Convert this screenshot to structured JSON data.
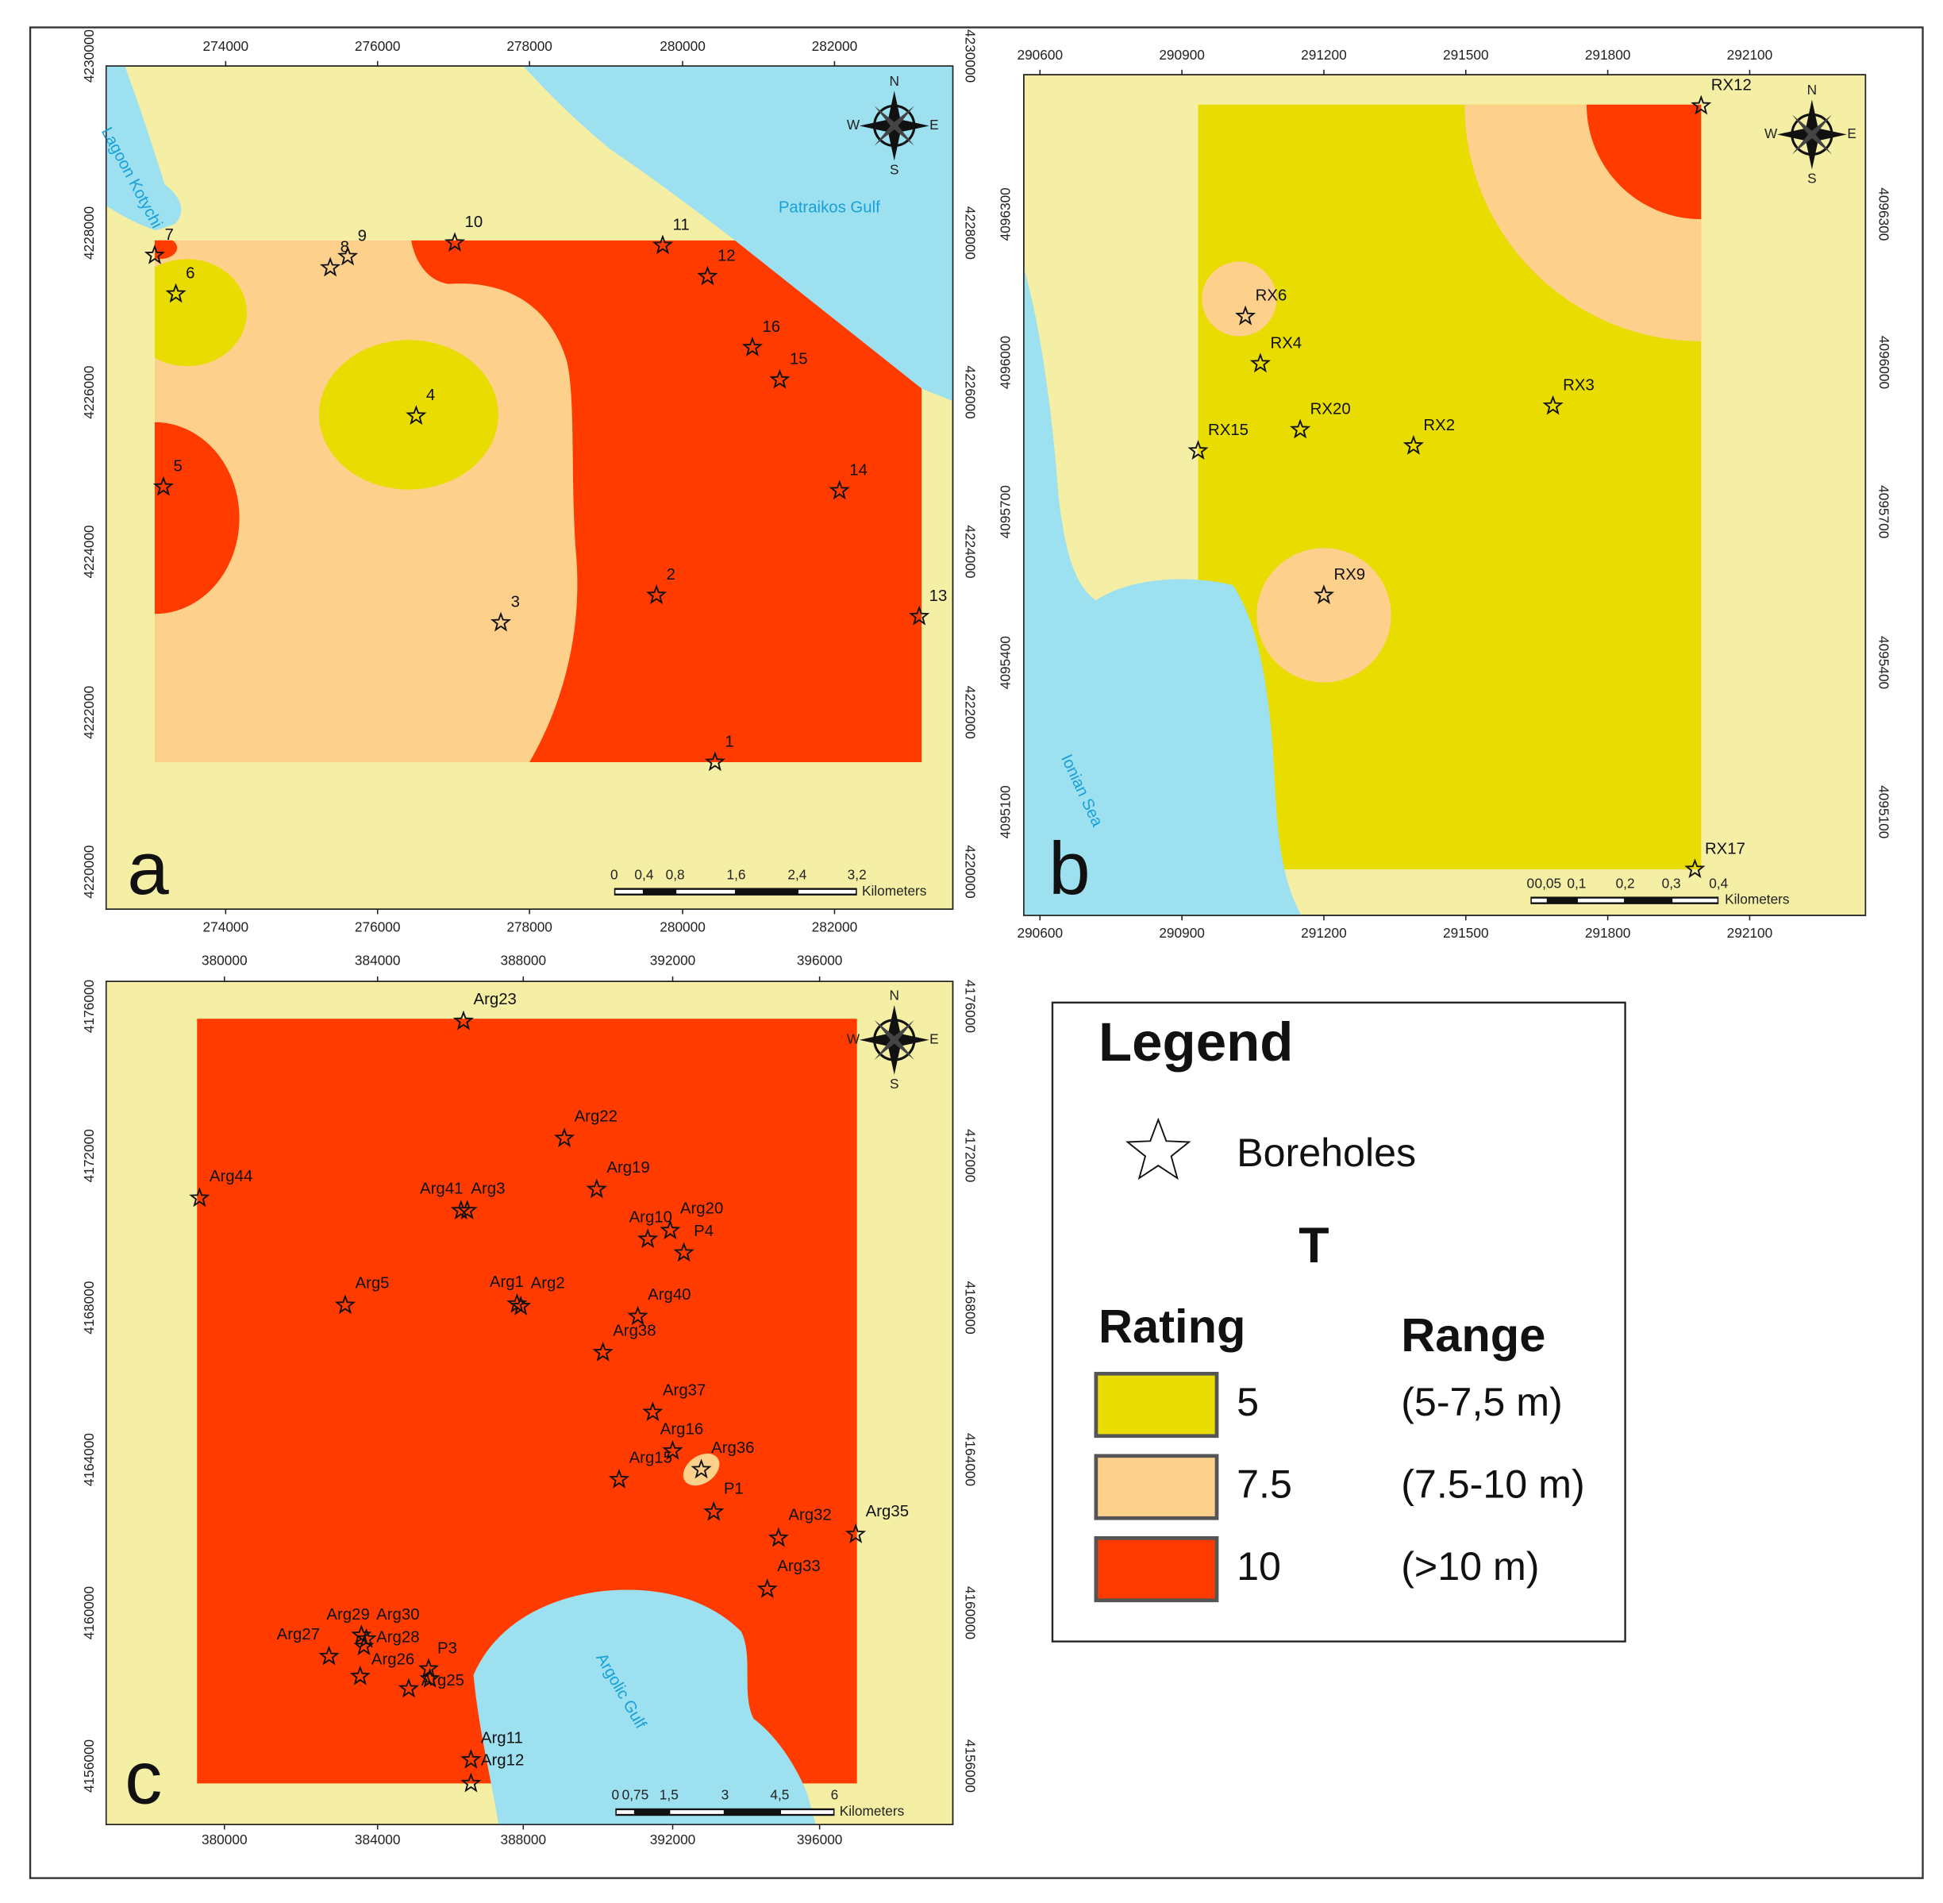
{
  "compass": {
    "n": "N",
    "e": "E",
    "s": "S",
    "w": "W"
  },
  "panels": [
    {
      "letter": "a",
      "x_ticks": [
        "274000",
        "276000",
        "278000",
        "280000",
        "282000"
      ],
      "y_ticks": [
        "4230000",
        "4228000",
        "4226000",
        "4224000",
        "4222000",
        "4220000"
      ],
      "places": [
        "Patraikos Gulf",
        "Lagoon Kotychi"
      ],
      "boreholes": [
        "1",
        "2",
        "3",
        "4",
        "5",
        "6",
        "7",
        "8",
        "9",
        "10",
        "11",
        "12",
        "13",
        "14",
        "15",
        "16"
      ],
      "scale_ticks": [
        "0",
        "0,4",
        "0,8",
        "1,6",
        "2,4",
        "3,2"
      ],
      "scale_unit": "Kilometers"
    },
    {
      "letter": "b",
      "x_ticks": [
        "290600",
        "290900",
        "291200",
        "291500",
        "291800",
        "292100"
      ],
      "y_ticks": [
        "4096300",
        "4096000",
        "4095700",
        "4095400",
        "4095100"
      ],
      "places": [
        "Ionian Sea"
      ],
      "boreholes": [
        "RX12",
        "RX6",
        "RX4",
        "RX20",
        "RX2",
        "RX3",
        "RX15",
        "RX9",
        "RX17"
      ],
      "scale_ticks": [
        "0",
        "0,05",
        "0,1",
        "0,2",
        "0,3",
        "0,4"
      ],
      "scale_unit": "Kilometers"
    },
    {
      "letter": "c",
      "x_ticks": [
        "380000",
        "384000",
        "388000",
        "392000",
        "396000"
      ],
      "y_ticks": [
        "4176000",
        "4172000",
        "4168000",
        "4164000",
        "4160000",
        "4156000"
      ],
      "places": [
        "Argolic Gulf"
      ],
      "boreholes": [
        "Arg23",
        "Arg22",
        "Arg44",
        "Arg19",
        "Arg41",
        "Arg3",
        "Arg10",
        "Arg20",
        "P4",
        "Arg5",
        "Arg1",
        "Arg2",
        "Arg40",
        "Arg38",
        "Arg37",
        "Arg16",
        "Arg15",
        "Arg36",
        "P1",
        "Arg32",
        "Arg35",
        "Arg33",
        "Arg29",
        "Arg30",
        "Arg28",
        "Arg27",
        "Arg26",
        "P3",
        "Arg25",
        "Arg11",
        "Arg12"
      ],
      "scale_ticks": [
        "0",
        "0,75",
        "1,5",
        "3",
        "4,5",
        "6"
      ],
      "scale_unit": "Kilometers"
    }
  ],
  "legend": {
    "title": "Legend",
    "symbol": "Boreholes",
    "parameter": "T",
    "rating_header": "Rating",
    "range_header": "Range",
    "items": [
      {
        "rating": "5",
        "range": "(5-7,5 m)",
        "color": "#e8dc00"
      },
      {
        "rating": "7.5",
        "range": "(7.5-10 m)",
        "color": "#fdd08b"
      },
      {
        "rating": "10",
        "range": "(>10 m)",
        "color": "#ff3b00"
      }
    ]
  }
}
